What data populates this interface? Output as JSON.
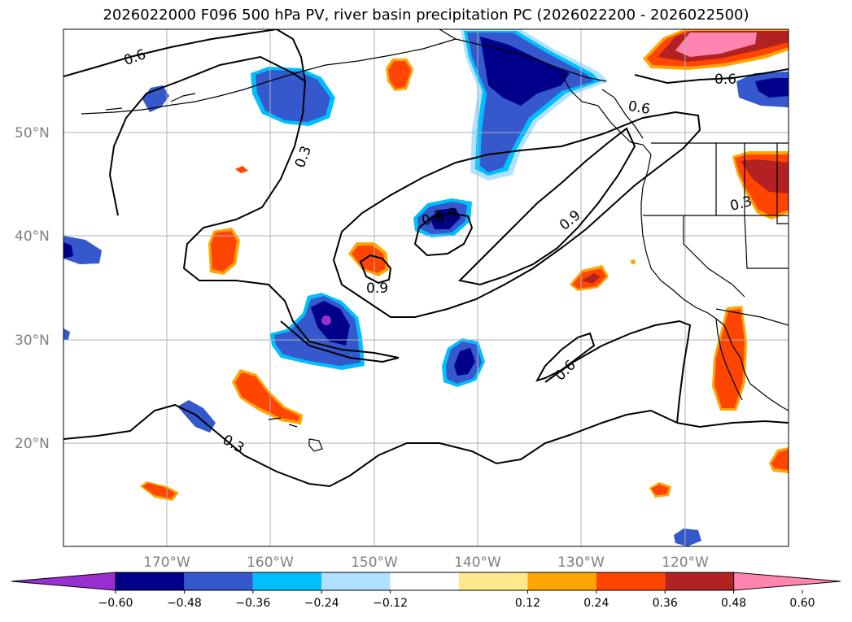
{
  "title": "2026022000 F096 500 hPa PV, river basin precipitation PC (2026022200 - 2026022500)",
  "latitude_labels": [
    "50°N",
    "40°N",
    "30°N",
    "20°N"
  ],
  "longitude_labels": [
    "170°W",
    "160°W",
    "150°W",
    "140°W",
    "130°W",
    "120°W"
  ],
  "contour_labels": [
    "0.6",
    "0.6",
    "0.6",
    "0.3",
    "0.3",
    "0.3",
    "0.3",
    "0.9",
    "0.9",
    "0.9",
    "0.6"
  ],
  "colorbar": {
    "ticks": [
      "−0.60",
      "−0.48",
      "−0.36",
      "−0.24",
      "−0.12",
      "0.12",
      "0.24",
      "0.36",
      "0.48",
      "0.60"
    ],
    "colors": [
      "#9a2fd0",
      "#00008b",
      "#3558cc",
      "#00bfff",
      "#b0e2ff",
      "#ffffff",
      "#ffe98a",
      "#ffa500",
      "#ff4500",
      "#b22222",
      "#ff85b0"
    ],
    "extend": "both"
  },
  "palette": {
    "shading_neg_dark": "#00008b",
    "shading_neg_mid": "#3558cc",
    "shading_neg_light": "#00bfff",
    "shading_neg_lightest": "#b0e2ff",
    "shading_pos_light": "#ffe98a",
    "shading_pos_mid": "#ffa500",
    "shading_pos_strong": "#ff4500",
    "shading_pos_dark": "#b22222",
    "shading_pos_max": "#ff85b0",
    "contour": "#000000",
    "gridline": "#b0b0b0"
  }
}
